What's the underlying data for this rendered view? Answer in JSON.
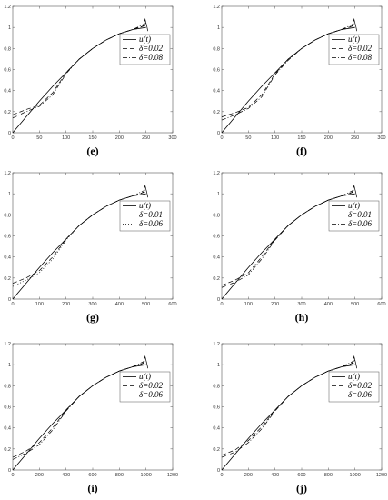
{
  "chart_data": [
    {
      "type": "line",
      "panel_label": "(e)",
      "xlim": [
        0,
        300
      ],
      "ylim": [
        0,
        1.2
      ],
      "xticks": [
        "0",
        "50",
        "100",
        "150",
        "200",
        "250",
        "300"
      ],
      "yticks": [
        "0",
        "0.2",
        "0.4",
        "0.6",
        "0.8",
        "1",
        "1.2"
      ],
      "legend": [
        "u(t)",
        "δ=0.02",
        "δ=0.08"
      ],
      "legend_position": "right",
      "series": [
        {
          "name": "u(t)",
          "style": "solid",
          "x": [
            0,
            25,
            50,
            75,
            100,
            125,
            150,
            175,
            200,
            225,
            250
          ],
          "y": [
            0.0,
            0.15,
            0.3,
            0.44,
            0.57,
            0.7,
            0.8,
            0.88,
            0.94,
            0.98,
            1.0
          ]
        },
        {
          "name": "δ=0.02",
          "style": "dashed",
          "x": [
            0,
            25,
            50,
            75,
            100,
            125,
            150,
            175,
            200,
            225,
            250
          ],
          "y": [
            0.17,
            0.22,
            0.26,
            0.38,
            0.57,
            0.7,
            0.8,
            0.88,
            0.94,
            0.98,
            1.02
          ]
        },
        {
          "name": "δ=0.08",
          "style": "dashdot",
          "x": [
            0,
            25,
            50,
            75,
            100,
            125,
            150,
            175,
            200,
            225,
            250
          ],
          "y": [
            0.14,
            0.2,
            0.25,
            0.36,
            0.56,
            0.7,
            0.8,
            0.88,
            0.94,
            0.98,
            1.04
          ]
        }
      ]
    },
    {
      "type": "line",
      "panel_label": "(f)",
      "xlim": [
        0,
        300
      ],
      "ylim": [
        0,
        1.2
      ],
      "xticks": [
        "0",
        "50",
        "100",
        "150",
        "200",
        "250",
        "300"
      ],
      "yticks": [
        "0",
        "0.2",
        "0.4",
        "0.6",
        "0.8",
        "1",
        "1.2"
      ],
      "legend": [
        "u(t)",
        "δ=0.02",
        "δ=0.08"
      ],
      "legend_position": "right",
      "series": [
        {
          "name": "u(t)",
          "style": "solid",
          "x": [
            0,
            25,
            50,
            75,
            100,
            125,
            150,
            175,
            200,
            225,
            250
          ],
          "y": [
            0.0,
            0.15,
            0.3,
            0.44,
            0.57,
            0.7,
            0.8,
            0.88,
            0.94,
            0.98,
            1.0
          ]
        },
        {
          "name": "δ=0.02",
          "style": "dashed",
          "x": [
            0,
            25,
            50,
            75,
            100,
            125,
            150,
            175,
            200,
            225,
            250
          ],
          "y": [
            0.15,
            0.19,
            0.24,
            0.36,
            0.56,
            0.7,
            0.8,
            0.88,
            0.94,
            0.98,
            1.02
          ]
        },
        {
          "name": "δ=0.08",
          "style": "dashdot",
          "x": [
            0,
            25,
            50,
            75,
            100,
            125,
            150,
            175,
            200,
            225,
            250
          ],
          "y": [
            0.12,
            0.17,
            0.23,
            0.34,
            0.55,
            0.69,
            0.8,
            0.88,
            0.94,
            0.98,
            1.04
          ]
        }
      ]
    },
    {
      "type": "line",
      "panel_label": "(g)",
      "xlim": [
        0,
        600
      ],
      "ylim": [
        0,
        1.2
      ],
      "xticks": [
        "0",
        "100",
        "200",
        "300",
        "400",
        "500",
        "600"
      ],
      "yticks": [
        "0",
        "0.2",
        "0.4",
        "0.6",
        "0.8",
        "1",
        "1.2"
      ],
      "legend": [
        "u(t)",
        "δ=0.01",
        "δ=0.06"
      ],
      "legend_position": "right",
      "series": [
        {
          "name": "u(t)",
          "style": "solid",
          "x": [
            0,
            50,
            100,
            150,
            200,
            250,
            300,
            350,
            400,
            450,
            500
          ],
          "y": [
            0.0,
            0.15,
            0.3,
            0.44,
            0.57,
            0.7,
            0.8,
            0.88,
            0.94,
            0.98,
            1.0
          ]
        },
        {
          "name": "δ=0.01",
          "style": "dashed",
          "x": [
            0,
            50,
            100,
            150,
            200,
            250,
            300,
            350,
            400,
            450,
            500
          ],
          "y": [
            0.15,
            0.2,
            0.27,
            0.4,
            0.57,
            0.7,
            0.8,
            0.88,
            0.94,
            0.98,
            1.02
          ]
        },
        {
          "name": "δ=0.06",
          "style": "dotted",
          "x": [
            0,
            50,
            100,
            150,
            200,
            250,
            300,
            350,
            400,
            450,
            500
          ],
          "y": [
            0.12,
            0.18,
            0.25,
            0.38,
            0.56,
            0.7,
            0.8,
            0.88,
            0.94,
            0.98,
            1.04
          ]
        }
      ]
    },
    {
      "type": "line",
      "panel_label": "(h)",
      "xlim": [
        0,
        600
      ],
      "ylim": [
        0,
        1.2
      ],
      "xticks": [
        "0",
        "100",
        "200",
        "300",
        "400",
        "500",
        "600"
      ],
      "yticks": [
        "0",
        "0.2",
        "0.4",
        "0.6",
        "0.8",
        "1",
        "1.2"
      ],
      "legend": [
        "u(t)",
        "δ=0.01",
        "δ=0.06"
      ],
      "legend_position": "right",
      "series": [
        {
          "name": "u(t)",
          "style": "solid",
          "x": [
            0,
            50,
            100,
            150,
            200,
            250,
            300,
            350,
            400,
            450,
            500
          ],
          "y": [
            0.0,
            0.15,
            0.3,
            0.44,
            0.57,
            0.7,
            0.8,
            0.88,
            0.94,
            0.98,
            1.0
          ]
        },
        {
          "name": "δ=0.01",
          "style": "dashed",
          "x": [
            0,
            50,
            100,
            150,
            200,
            250,
            300,
            350,
            400,
            450,
            500
          ],
          "y": [
            0.13,
            0.18,
            0.25,
            0.4,
            0.57,
            0.7,
            0.8,
            0.88,
            0.94,
            0.98,
            1.02
          ]
        },
        {
          "name": "δ=0.06",
          "style": "dashdot",
          "x": [
            0,
            50,
            100,
            150,
            200,
            250,
            300,
            350,
            400,
            450,
            500
          ],
          "y": [
            0.11,
            0.16,
            0.23,
            0.38,
            0.56,
            0.7,
            0.8,
            0.88,
            0.94,
            0.98,
            1.04
          ]
        }
      ]
    },
    {
      "type": "line",
      "panel_label": "(i)",
      "xlim": [
        0,
        1200
      ],
      "ylim": [
        0,
        1.2
      ],
      "xticks": [
        "0",
        "200",
        "400",
        "600",
        "800",
        "1000",
        "1200"
      ],
      "yticks": [
        "0",
        "0.2",
        "0.4",
        "0.6",
        "0.8",
        "1",
        "1.2"
      ],
      "legend": [
        "u(t)",
        "δ=0.02",
        "δ=0.06"
      ],
      "legend_position": "right",
      "series": [
        {
          "name": "u(t)",
          "style": "solid",
          "x": [
            0,
            100,
            200,
            300,
            400,
            500,
            600,
            700,
            800,
            900,
            1000
          ],
          "y": [
            0.0,
            0.15,
            0.3,
            0.44,
            0.57,
            0.7,
            0.8,
            0.88,
            0.94,
            0.98,
            1.0
          ]
        },
        {
          "name": "δ=0.02",
          "style": "dashed",
          "x": [
            0,
            100,
            200,
            300,
            400,
            500,
            600,
            700,
            800,
            900,
            1000
          ],
          "y": [
            0.12,
            0.18,
            0.26,
            0.4,
            0.57,
            0.7,
            0.8,
            0.88,
            0.94,
            0.98,
            1.02
          ]
        },
        {
          "name": "δ=0.06",
          "style": "dashdot",
          "x": [
            0,
            100,
            200,
            300,
            400,
            500,
            600,
            700,
            800,
            900,
            1000
          ],
          "y": [
            0.1,
            0.16,
            0.24,
            0.38,
            0.56,
            0.7,
            0.8,
            0.88,
            0.94,
            0.98,
            1.04
          ]
        }
      ]
    },
    {
      "type": "line",
      "panel_label": "(j)",
      "xlim": [
        0,
        1200
      ],
      "ylim": [
        0,
        1.2
      ],
      "xticks": [
        "0",
        "200",
        "400",
        "600",
        "800",
        "1000",
        "1200"
      ],
      "yticks": [
        "0",
        "0.2",
        "0.4",
        "0.6",
        "0.8",
        "1",
        "1.2"
      ],
      "legend": [
        "u(t)",
        "δ=0.02",
        "δ=0.06"
      ],
      "legend_position": "right",
      "series": [
        {
          "name": "u(t)",
          "style": "solid",
          "x": [
            0,
            100,
            200,
            300,
            400,
            500,
            600,
            700,
            800,
            900,
            1000
          ],
          "y": [
            0.0,
            0.15,
            0.3,
            0.44,
            0.57,
            0.7,
            0.8,
            0.88,
            0.94,
            0.98,
            1.0
          ]
        },
        {
          "name": "δ=0.02",
          "style": "dashed",
          "x": [
            0,
            100,
            200,
            300,
            400,
            500,
            600,
            700,
            800,
            900,
            1000
          ],
          "y": [
            0.14,
            0.19,
            0.28,
            0.41,
            0.57,
            0.7,
            0.8,
            0.88,
            0.94,
            0.98,
            1.02
          ]
        },
        {
          "name": "δ=0.06",
          "style": "dashdot",
          "x": [
            0,
            100,
            200,
            300,
            400,
            500,
            600,
            700,
            800,
            900,
            1000
          ],
          "y": [
            0.12,
            0.17,
            0.26,
            0.39,
            0.56,
            0.7,
            0.8,
            0.88,
            0.94,
            0.98,
            1.04
          ]
        }
      ]
    }
  ]
}
